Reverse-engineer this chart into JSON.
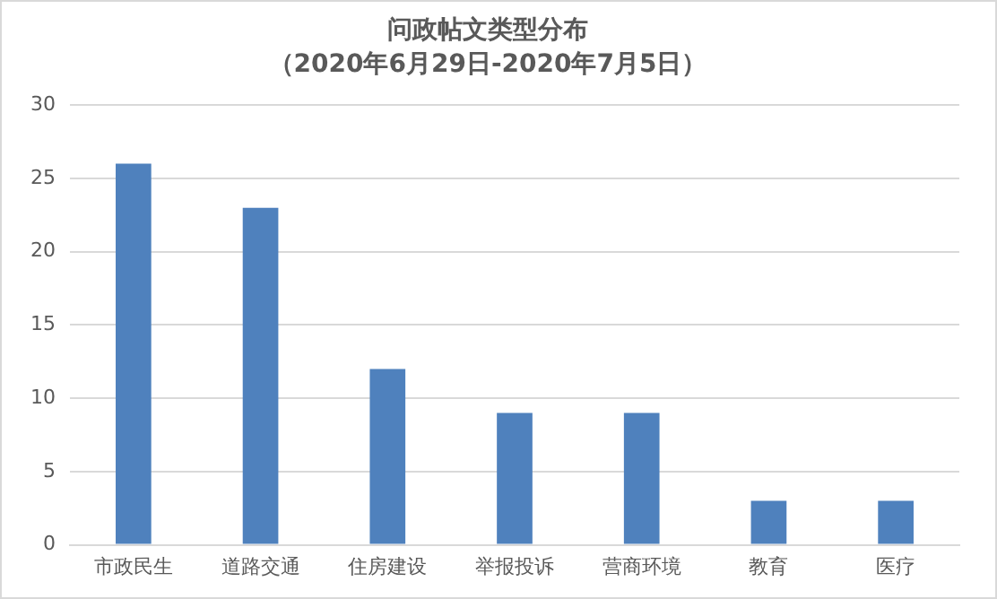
{
  "chart_data": {
    "type": "bar",
    "title": "问政帖文类型分布",
    "subtitle": "（2020年6月29日-2020年7月5日）",
    "categories": [
      "市政民生",
      "道路交通",
      "住房建设",
      "举报投诉",
      "营商环境",
      "教育",
      "医疗"
    ],
    "values": [
      26,
      23,
      12,
      9,
      9,
      3,
      3
    ],
    "color": "#4f81bd",
    "ylim": [
      0,
      30
    ],
    "yticks": [
      0,
      5,
      10,
      15,
      20,
      25,
      30
    ],
    "grid": "y",
    "legend": false
  }
}
